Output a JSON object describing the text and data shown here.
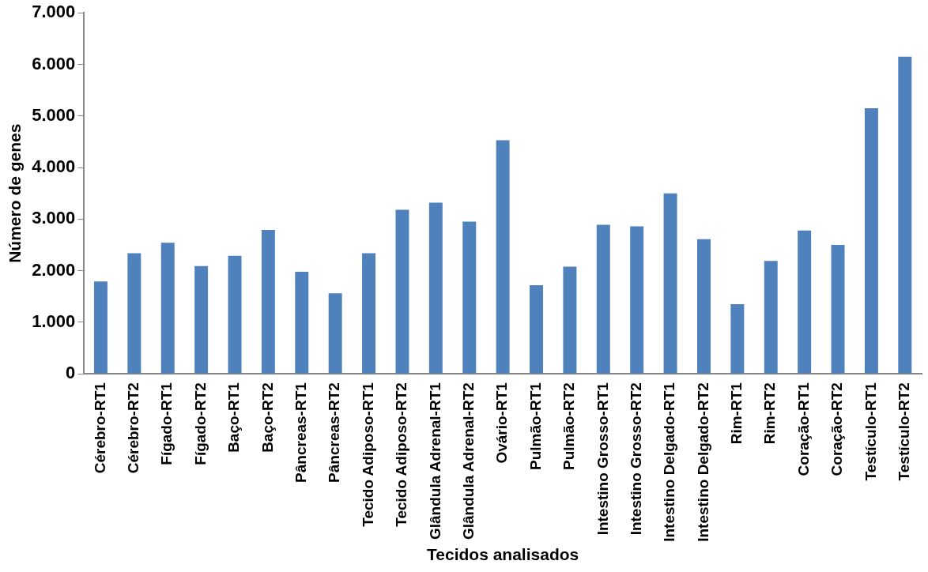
{
  "chart_data": {
    "type": "bar",
    "xlabel": "Tecidos analisados",
    "ylabel": "Número de genes",
    "categories": [
      "Cérebro-RT1",
      "Cérebro-RT2",
      "Fígado-RT1",
      "Fígado-RT2",
      "Baço-RT1",
      "Baço-RT2",
      "Pâncreas-RT1",
      "Pâncreas-RT2",
      "Tecido Adiposo-RT1",
      "Tecido Adiposo-RT2",
      "Glândula Adrenal-RT1",
      "Glândula Adrenal-RT2",
      "Ovário-RT1",
      "Pulmão-RT1",
      "Pulmão-RT2",
      "Intestino Grosso-RT1",
      "Intestino Grosso-RT2",
      "Intestino Delgado-RT1",
      "Intestino Delgado-RT2",
      "Rim-RT1",
      "Rim-RT2",
      "Coração-RT1",
      "Coração-RT2",
      "Testículo-RT1",
      "Testículo-RT2"
    ],
    "values": [
      1790,
      2340,
      2540,
      2090,
      2290,
      2790,
      1980,
      1560,
      2340,
      3180,
      3320,
      2950,
      4530,
      1720,
      2080,
      2890,
      2860,
      3500,
      2610,
      1350,
      2190,
      2780,
      2500,
      5150,
      6150
    ],
    "color": "#4f81bd",
    "ylim": [
      0,
      7000
    ],
    "yticks": [
      {
        "value": 0,
        "label": "0"
      },
      {
        "value": 1000,
        "label": "1.000"
      },
      {
        "value": 2000,
        "label": "2.000"
      },
      {
        "value": 3000,
        "label": "3.000"
      },
      {
        "value": 4000,
        "label": "4.000"
      },
      {
        "value": 5000,
        "label": "5.000"
      },
      {
        "value": 6000,
        "label": "6.000"
      },
      {
        "value": 7000,
        "label": "7.000"
      }
    ],
    "grid": false,
    "legend": false
  }
}
